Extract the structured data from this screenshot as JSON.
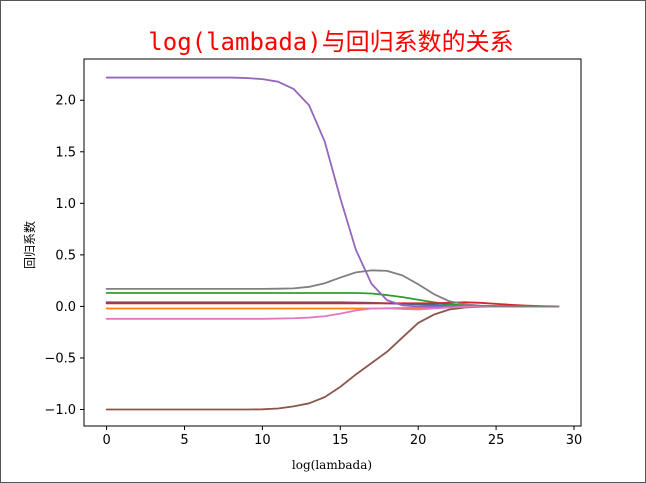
{
  "chart_data": {
    "type": "line",
    "title": "log(lambada)与回归系数的关系",
    "xlabel": "log(lambada)",
    "ylabel": "回归系数",
    "xlim": [
      -1.45,
      30.45
    ],
    "ylim": [
      -1.16,
      2.4
    ],
    "xticks": [
      0,
      5,
      10,
      15,
      20,
      25,
      30
    ],
    "yticks": [
      -1.0,
      -0.5,
      0.0,
      0.5,
      1.0,
      1.5,
      2.0
    ],
    "xtick_labels": [
      "0",
      "5",
      "10",
      "15",
      "20",
      "25",
      "30"
    ],
    "ytick_labels": [
      "−1.0",
      "−0.5",
      "0.0",
      "0.5",
      "1.0",
      "1.5",
      "2.0"
    ],
    "grid": false,
    "x": [
      0,
      1,
      2,
      3,
      4,
      5,
      6,
      7,
      8,
      9,
      10,
      11,
      12,
      13,
      14,
      15,
      16,
      17,
      18,
      19,
      20,
      21,
      22,
      23,
      24,
      25,
      26,
      27,
      28,
      29
    ],
    "series": [
      {
        "color": "#1f77b4",
        "values": [
          0.04,
          0.04,
          0.04,
          0.04,
          0.04,
          0.04,
          0.04,
          0.04,
          0.04,
          0.04,
          0.04,
          0.04,
          0.04,
          0.04,
          0.04,
          0.04,
          0.038,
          0.035,
          0.03,
          0.025,
          0.02,
          0.015,
          0.01,
          0.007,
          0.005,
          0.003,
          0.002,
          0.001,
          0.0,
          0.0
        ]
      },
      {
        "color": "#ff7f0e",
        "values": [
          -0.02,
          -0.02,
          -0.02,
          -0.02,
          -0.02,
          -0.02,
          -0.02,
          -0.02,
          -0.02,
          -0.02,
          -0.02,
          -0.02,
          -0.02,
          -0.02,
          -0.02,
          -0.02,
          -0.02,
          -0.02,
          -0.018,
          -0.016,
          -0.014,
          -0.01,
          -0.008,
          -0.005,
          -0.003,
          -0.002,
          -0.001,
          0.0,
          0.0,
          0.0
        ]
      },
      {
        "color": "#2ca02c",
        "values": [
          0.13,
          0.13,
          0.13,
          0.13,
          0.13,
          0.13,
          0.13,
          0.13,
          0.13,
          0.13,
          0.13,
          0.13,
          0.13,
          0.13,
          0.13,
          0.13,
          0.13,
          0.125,
          0.11,
          0.09,
          0.065,
          0.04,
          0.02,
          0.01,
          0.005,
          0.002,
          0.001,
          0.0,
          0.0,
          0.0
        ]
      },
      {
        "color": "#d62728",
        "values": [
          0.03,
          0.03,
          0.03,
          0.03,
          0.03,
          0.03,
          0.03,
          0.03,
          0.03,
          0.03,
          0.03,
          0.03,
          0.03,
          0.03,
          0.03,
          0.03,
          0.03,
          0.03,
          0.03,
          0.03,
          0.03,
          0.03,
          0.035,
          0.04,
          0.035,
          0.025,
          0.015,
          0.008,
          0.003,
          0.0
        ]
      },
      {
        "color": "#9467bd",
        "values": [
          2.22,
          2.22,
          2.22,
          2.22,
          2.22,
          2.22,
          2.22,
          2.22,
          2.22,
          2.215,
          2.205,
          2.18,
          2.11,
          1.95,
          1.6,
          1.05,
          0.55,
          0.22,
          0.06,
          0.01,
          0.0,
          0.0,
          0.0,
          0.0,
          0.0,
          0.0,
          0.0,
          0.0,
          0.0,
          0.0
        ]
      },
      {
        "color": "#8c564b",
        "values": [
          -1.0,
          -1.0,
          -1.0,
          -1.0,
          -1.0,
          -1.0,
          -1.0,
          -1.0,
          -1.0,
          -1.0,
          -0.998,
          -0.99,
          -0.97,
          -0.94,
          -0.88,
          -0.78,
          -0.66,
          -0.55,
          -0.44,
          -0.3,
          -0.16,
          -0.08,
          -0.03,
          -0.01,
          -0.003,
          -0.001,
          0.0,
          0.0,
          0.0,
          0.0
        ]
      },
      {
        "color": "#e377c2",
        "values": [
          -0.12,
          -0.12,
          -0.12,
          -0.12,
          -0.12,
          -0.12,
          -0.12,
          -0.12,
          -0.12,
          -0.12,
          -0.12,
          -0.118,
          -0.115,
          -0.108,
          -0.095,
          -0.07,
          -0.04,
          -0.02,
          -0.018,
          -0.025,
          -0.03,
          -0.02,
          -0.01,
          -0.004,
          -0.002,
          -0.001,
          0.0,
          0.0,
          0.0,
          0.0
        ]
      },
      {
        "color": "#7f7f7f",
        "values": [
          0.17,
          0.17,
          0.17,
          0.17,
          0.17,
          0.17,
          0.17,
          0.17,
          0.17,
          0.17,
          0.17,
          0.172,
          0.175,
          0.19,
          0.225,
          0.28,
          0.33,
          0.35,
          0.345,
          0.3,
          0.215,
          0.12,
          0.05,
          0.02,
          0.008,
          0.003,
          0.001,
          0.0,
          0.0,
          0.0
        ]
      }
    ],
    "colors": {
      "title": "#ff0000"
    }
  }
}
